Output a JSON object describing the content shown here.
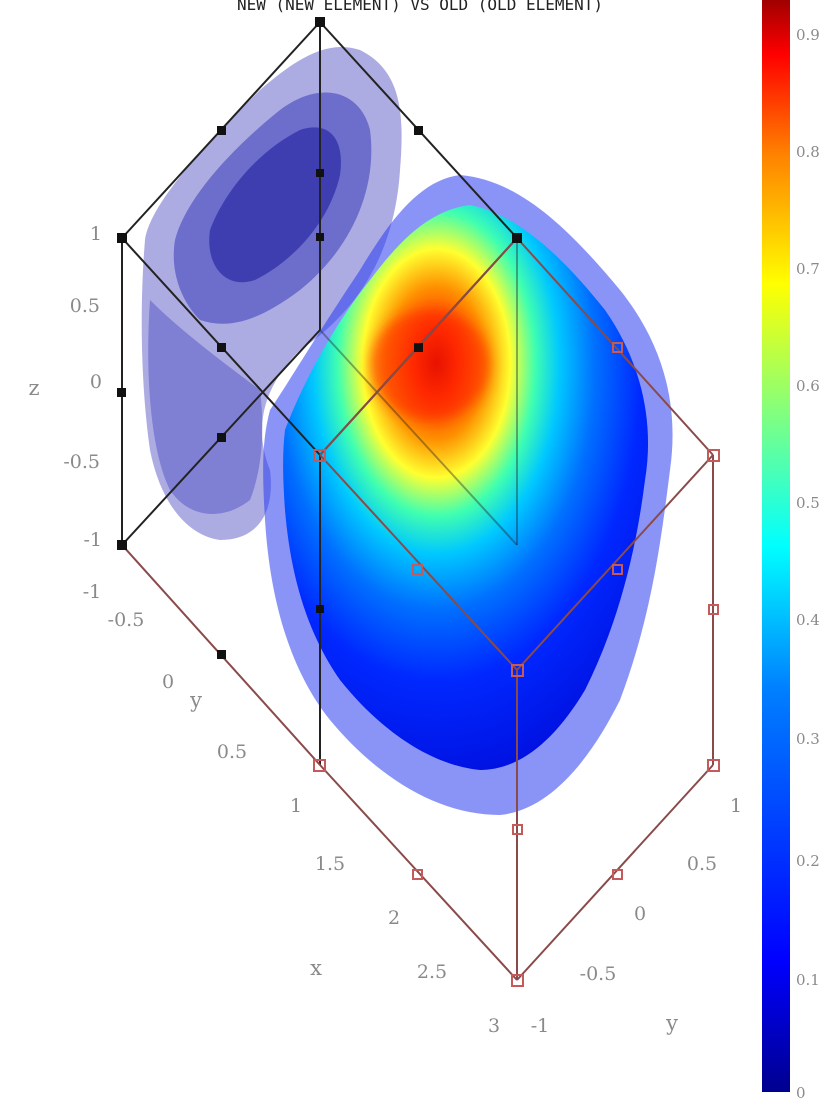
{
  "title": "NEW (NEW ELEMENT) VS OLD (OLD ELEMENT)",
  "axes": {
    "z_label": "z",
    "y_label_left": "y",
    "x_label": "x",
    "y_label_right": "y"
  },
  "ticks": {
    "z": [
      "1",
      "0.5",
      "0",
      "-0.5",
      "-1"
    ],
    "y_left": [
      "-1",
      "-0.5",
      "0",
      "0.5",
      "1"
    ],
    "x": [
      "1",
      "1.5",
      "2",
      "2.5",
      "3"
    ],
    "y_right": [
      "-1",
      "-0.5",
      "0",
      "0.5",
      "1"
    ]
  },
  "colorbar": {
    "ticks": [
      "0",
      "0.1",
      "0.2",
      "0.3",
      "0.4",
      "0.5",
      "0.6",
      "0.7",
      "0.8",
      "0.9"
    ],
    "colors": [
      "#00008f",
      "#0000ff",
      "#0080ff",
      "#00ffff",
      "#80ff80",
      "#ffff00",
      "#ff8000",
      "#ff0000",
      "#800000"
    ]
  },
  "colors": {
    "old_element_edges": "#000000",
    "new_element_edges": "#c85050",
    "old_element_fill": "#5a5ac8",
    "new_element_fill": "#1e3cff"
  }
}
